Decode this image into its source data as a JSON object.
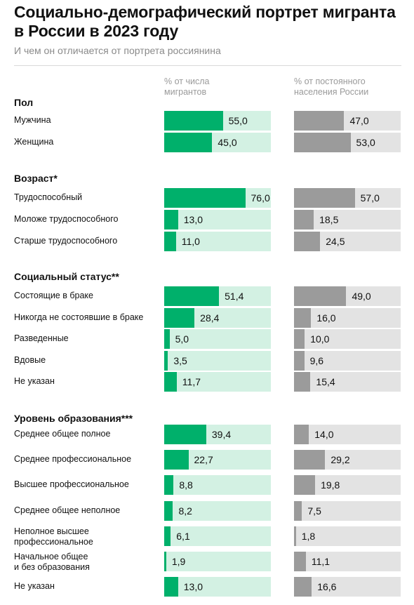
{
  "title": "Социально-демографический портрет мигранта в России в 2023 году",
  "subtitle": "И чем он отличается от портрета россиянина",
  "columns": {
    "migrants": "% от числа мигрантов",
    "population": "% от постоянного населения России"
  },
  "colors": {
    "migrant_fill": "#00b06b",
    "migrant_bg": "#d3f1e3",
    "population_fill": "#9b9b9b",
    "population_bg": "#e3e3e3"
  },
  "chart_data": {
    "type": "bar",
    "orientation": "horizontal",
    "xlim": [
      0,
      100
    ],
    "series_names": [
      "% от числа мигрантов",
      "% от постоянного населения России"
    ],
    "sections": [
      {
        "title": "Пол",
        "rows": [
          {
            "label": "Мужчина",
            "migrants": 55.0,
            "population": 47.0
          },
          {
            "label": "Женщина",
            "migrants": 45.0,
            "population": 53.0
          }
        ]
      },
      {
        "title": "Возраст*",
        "rows": [
          {
            "label": "Трудоспособный",
            "migrants": 76.0,
            "population": 57.0
          },
          {
            "label": "Моложе трудоспособного",
            "migrants": 13.0,
            "population": 18.5
          },
          {
            "label": "Старше трудоспособного",
            "migrants": 11.0,
            "population": 24.5
          }
        ]
      },
      {
        "title": "Социальный статус**",
        "rows": [
          {
            "label": "Состоящие в браке",
            "migrants": 51.4,
            "population": 49.0
          },
          {
            "label": "Никогда не состоявшие в браке",
            "migrants": 28.4,
            "population": 16.0
          },
          {
            "label": "Разведенные",
            "migrants": 5.0,
            "population": 10.0
          },
          {
            "label": "Вдовые",
            "migrants": 3.5,
            "population": 9.6
          },
          {
            "label": "Не указан",
            "migrants": 11.7,
            "population": 15.4
          }
        ]
      },
      {
        "title": "Уровень образования***",
        "rows": [
          {
            "label": "Среднее общее полное",
            "migrants": 39.4,
            "population": 14.0
          },
          {
            "label": "Среднее профессиональное",
            "migrants": 22.7,
            "population": 29.2
          },
          {
            "label": "Высшее профессиональное",
            "migrants": 8.8,
            "population": 19.8
          },
          {
            "label": "Среднее общее неполное",
            "migrants": 8.2,
            "population": 7.5
          },
          {
            "label": "Неполное высшее\nпрофессиональное",
            "migrants": 6.1,
            "population": 1.8
          },
          {
            "label": "Начальное общее\nи без образования",
            "migrants": 1.9,
            "population": 11.1
          },
          {
            "label": "Не указан",
            "migrants": 13.0,
            "population": 16.6
          }
        ]
      }
    ]
  }
}
